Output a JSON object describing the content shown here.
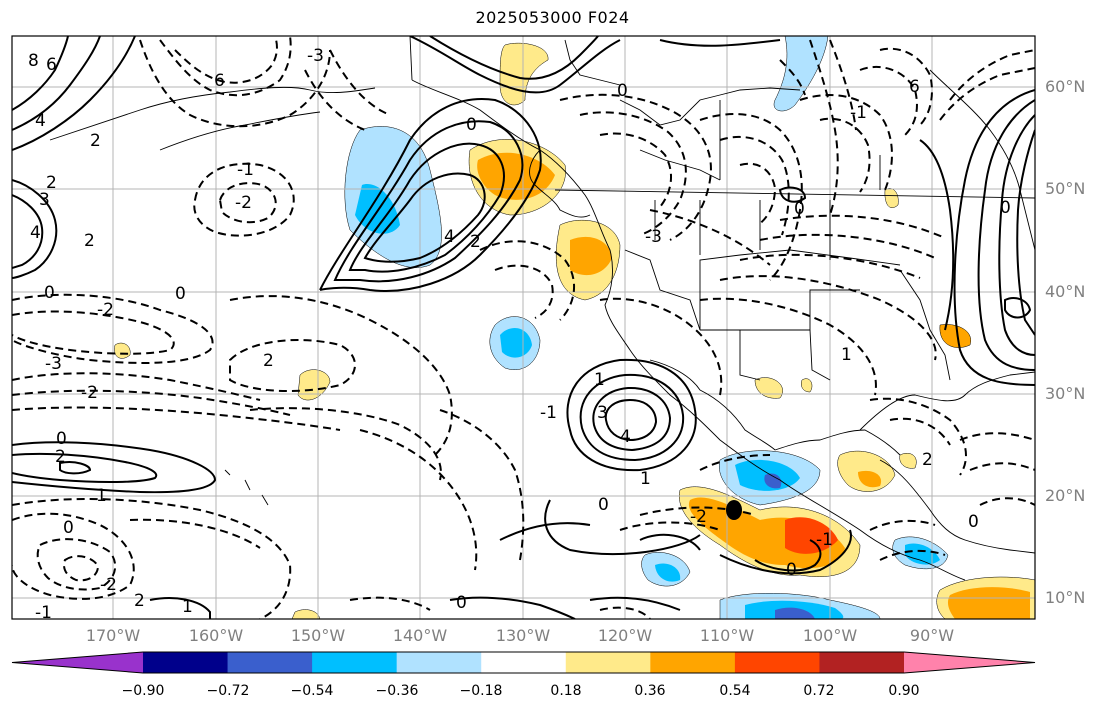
{
  "title": "2025053000 F024",
  "lat_labels": [
    "60°N",
    "50°N",
    "40°N",
    "30°N",
    "20°N",
    "10°N"
  ],
  "lon_labels": [
    "170°W",
    "160°W",
    "150°W",
    "140°W",
    "130°W",
    "120°W",
    "110°W",
    "100°W",
    "90°W"
  ],
  "colorbar": {
    "ticks": [
      "−0.90",
      "−0.72",
      "−0.54",
      "−0.36",
      "−0.18",
      "0.18",
      "0.36",
      "0.54",
      "0.72",
      "0.90"
    ],
    "colors": [
      "#9932cc",
      "#00008b",
      "#3a5fcd",
      "#00bfff",
      "#b0e2ff",
      "#ffffff",
      "#ffea8a",
      "#ffa500",
      "#ff4500",
      "#b22222",
      "#ff82ab"
    ]
  },
  "contour_labels": [
    "8",
    "6",
    "4",
    "2",
    "2",
    "0",
    "-1",
    "-2",
    "3",
    "4",
    "0",
    "-2",
    "2",
    "6",
    "-3",
    "2",
    "1",
    "-1",
    "-3",
    "1",
    "0",
    "6",
    "4",
    "2",
    "0",
    "1",
    "-2",
    "0",
    "3",
    "4",
    "2",
    "1",
    "0",
    "-3",
    "2",
    "0",
    "-2",
    "-1",
    "2",
    "1",
    "0",
    "0",
    "0",
    "-2",
    "-1",
    "-1",
    "0",
    "0"
  ]
}
